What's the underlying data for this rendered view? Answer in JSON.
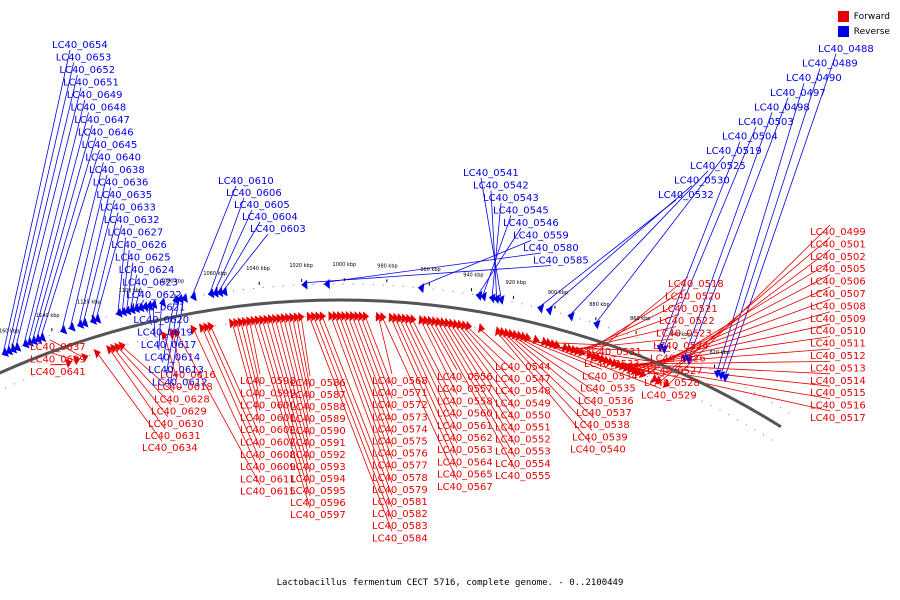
{
  "legend": {
    "forward_label": "Forward",
    "reverse_label": "Reverse",
    "forward_color": "#e60000",
    "reverse_color": "#0000e6"
  },
  "caption": "Lactobacillus fermentum CECT 5716, complete genome. - 0..2100449",
  "kbp_ticks": [
    "820 kbp",
    "840 kbp",
    "860 kbp",
    "880 kbp",
    "900 kbp",
    "920 kbp",
    "940 kbp",
    "960 kbp",
    "980 kbp",
    "1000 kbp",
    "1020 kbp",
    "1040 kbp",
    "1060 kbp",
    "1080 kbp",
    "1100 kbp",
    "1120 kbp",
    "1140 kbp",
    "1160 kbp"
  ],
  "reverse_genes": [
    "LC40_0488",
    "LC40_0489",
    "LC40_0490",
    "LC40_0497",
    "LC40_0498",
    "LC40_0503",
    "LC40_0504",
    "LC40_0519",
    "LC40_0525",
    "LC40_0530",
    "LC40_0532",
    "LC40_0541",
    "LC40_0542",
    "LC40_0543",
    "LC40_0545",
    "LC40_0546",
    "LC40_0559",
    "LC40_0580",
    "LC40_0585",
    "LC40_0603",
    "LC40_0604",
    "LC40_0605",
    "LC40_0606",
    "LC40_0610",
    "LC40_0612",
    "LC40_0613",
    "LC40_0614",
    "LC40_0617",
    "LC40_0619",
    "LC40_0620",
    "LC40_0621",
    "LC40_0622",
    "LC40_0623",
    "LC40_0624",
    "LC40_0625",
    "LC40_0626",
    "LC40_0627",
    "LC40_0632",
    "LC40_0633",
    "LC40_0635",
    "LC40_0636",
    "LC40_0638",
    "LC40_0640",
    "LC40_0645",
    "LC40_0646",
    "LC40_0647",
    "LC40_0648",
    "LC40_0649",
    "LC40_0651",
    "LC40_0652",
    "LC40_0653",
    "LC40_0654"
  ],
  "forward_genes": [
    "LC40_0499",
    "LC40_0501",
    "LC40_0502",
    "LC40_0505",
    "LC40_0506",
    "LC40_0507",
    "LC40_0508",
    "LC40_0509",
    "LC40_0510",
    "LC40_0511",
    "LC40_0512",
    "LC40_0513",
    "LC40_0514",
    "LC40_0515",
    "LC40_0516",
    "LC40_0517",
    "LC40_0518",
    "LC40_0520",
    "LC40_0521",
    "LC40_0522",
    "LC40_0523",
    "LC40_0524",
    "LC40_0526",
    "LC40_0527",
    "LC40_0528",
    "LC40_0529",
    "LC40_0531",
    "LC40_0533",
    "LC40_0534",
    "LC40_0535",
    "LC40_0536",
    "LC40_0537",
    "LC40_0538",
    "LC40_0539",
    "LC40_0540",
    "LC40_0544",
    "LC40_0547",
    "LC40_0548",
    "LC40_0549",
    "LC40_0550",
    "LC40_0551",
    "LC40_0552",
    "LC40_0553",
    "LC40_0554",
    "LC40_0555",
    "LC40_0556",
    "LC40_0557",
    "LC40_0558",
    "LC40_0560",
    "LC40_0561",
    "LC40_0562",
    "LC40_0563",
    "LC40_0564",
    "LC40_0565",
    "LC40_0567",
    "LC40_0568",
    "LC40_0571",
    "LC40_0572",
    "LC40_0573",
    "LC40_0574",
    "LC40_0575",
    "LC40_0576",
    "LC40_0577",
    "LC40_0578",
    "LC40_0579",
    "LC40_0581",
    "LC40_0582",
    "LC40_0583",
    "LC40_0584",
    "LC40_0586",
    "LC40_0587",
    "LC40_0588",
    "LC40_0589",
    "LC40_0590",
    "LC40_0591",
    "LC40_0592",
    "LC40_0593",
    "LC40_0594",
    "LC40_0595",
    "LC40_0596",
    "LC40_0597",
    "LC40_0598",
    "LC40_0599",
    "LC40_0600",
    "LC40_0601",
    "LC40_0602",
    "LC40_0607",
    "LC40_0608",
    "LC40_0609",
    "LC40_0611",
    "LC40_0615",
    "LC40_0616",
    "LC40_0618",
    "LC40_0628",
    "LC40_0629",
    "LC40_0630",
    "LC40_0631",
    "LC40_0634",
    "LC40_0637",
    "LC40_0639",
    "LC40_0641"
  ]
}
